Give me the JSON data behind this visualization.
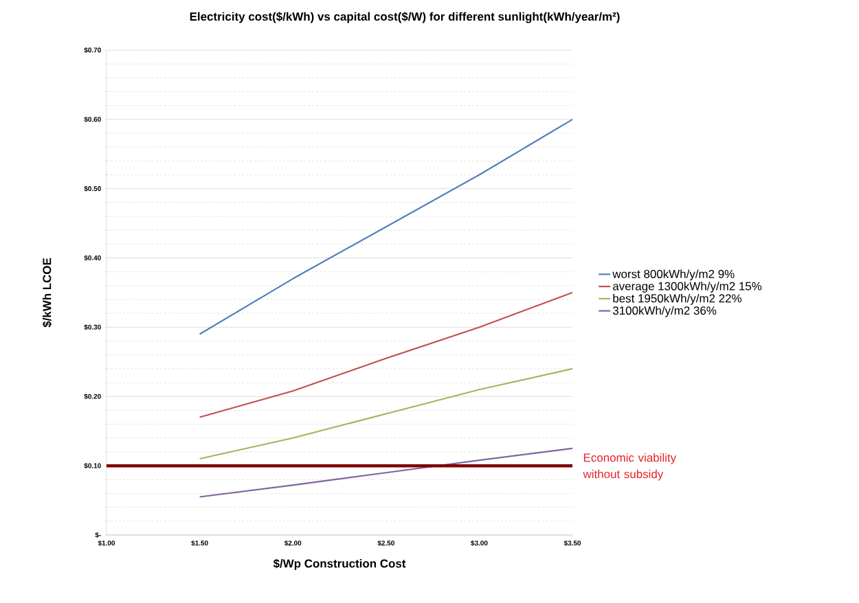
{
  "chart_data": {
    "type": "line",
    "title": "Electricity cost($/kWh) vs capital cost($/W) for different sunlight(kWh/year/m²)",
    "xlabel": "$/Wp Construction Cost",
    "ylabel": "$/kWh  LCOE",
    "x": [
      1.5,
      2.0,
      2.5,
      3.0,
      3.5
    ],
    "series": [
      {
        "name": "worst 800kWh/y/m2 9%",
        "color": "#4f81bd",
        "values": [
          0.29,
          0.37,
          0.445,
          0.52,
          0.6
        ]
      },
      {
        "name": "average 1300kWh/y/m2 15%",
        "color": "#c0504d",
        "values": [
          0.17,
          0.208,
          0.255,
          0.3,
          0.35
        ]
      },
      {
        "name": "best 1950kWh/y/m2 22%",
        "color": "#9bbb59",
        "values": [
          0.11,
          0.14,
          0.175,
          0.21,
          0.24
        ]
      },
      {
        "name": "3100kWh/y/m2 36%",
        "color": "#8064a2",
        "values": [
          0.055,
          0.072,
          0.09,
          0.108,
          0.125
        ]
      }
    ],
    "xlim": [
      1.0,
      3.5
    ],
    "xticks": [
      {
        "value": 1.0,
        "label": "$1.00"
      },
      {
        "value": 1.5,
        "label": "$1.50"
      },
      {
        "value": 2.0,
        "label": "$2.00"
      },
      {
        "value": 2.5,
        "label": "$2.50"
      },
      {
        "value": 3.0,
        "label": "$3.00"
      },
      {
        "value": 3.5,
        "label": "$3.50"
      }
    ],
    "ylim": [
      0,
      0.7
    ],
    "yticks": [
      {
        "value": 0,
        "label": "$-"
      },
      {
        "value": 0.1,
        "label": "$0.10"
      },
      {
        "value": 0.2,
        "label": "$0.20"
      },
      {
        "value": 0.3,
        "label": "$0.30"
      },
      {
        "value": 0.4,
        "label": "$0.40"
      },
      {
        "value": 0.5,
        "label": "$0.50"
      },
      {
        "value": 0.6,
        "label": "$0.60"
      },
      {
        "value": 0.7,
        "label": "$0.70"
      }
    ],
    "ref_lines": [
      {
        "axis": "y",
        "value": 0.1,
        "label": "Economic viability without subsidy",
        "color": "#7f0000"
      }
    ],
    "grid": "y",
    "legend": "right",
    "marker": "none",
    "line_style": "solid"
  }
}
